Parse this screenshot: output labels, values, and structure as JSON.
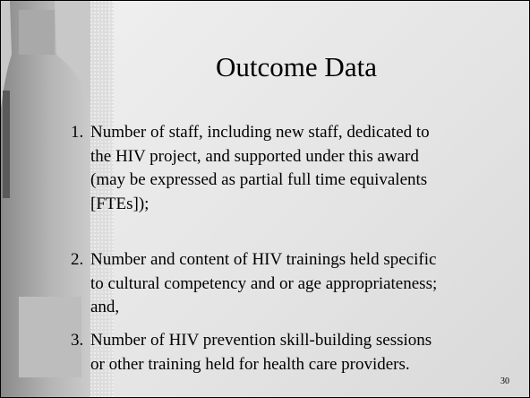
{
  "slide": {
    "title": "Outcome Data",
    "items": [
      {
        "number": "1.",
        "lines": [
          "Number of staff, including new staff, dedicated to",
          "the HIV project, and supported under this award",
          "(may be expressed as partial full time equivalents",
          "[FTEs]);"
        ]
      },
      {
        "number": "2.",
        "lines": [
          "Number and content of HIV trainings held specific",
          "to cultural competency and or age appropriateness;",
          "and,"
        ]
      },
      {
        "number": "3.",
        "lines": [
          "Number of HIV prevention skill-building sessions",
          "or other training held for health care providers."
        ]
      }
    ],
    "page_number": "30"
  }
}
